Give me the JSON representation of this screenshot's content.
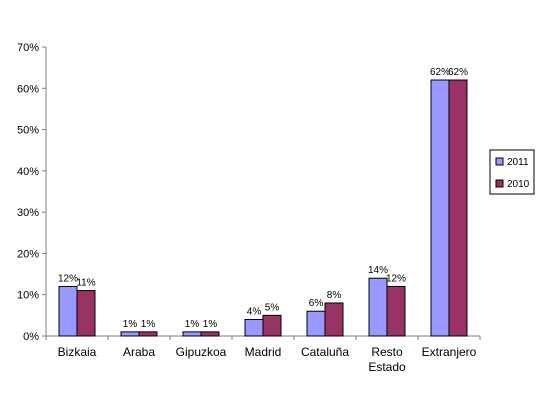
{
  "chart_data": {
    "type": "bar",
    "title": "",
    "xlabel": "",
    "ylabel": "",
    "ylim": [
      0,
      70
    ],
    "yticks": [
      "0%",
      "10%",
      "20%",
      "30%",
      "40%",
      "50%",
      "60%",
      "70%"
    ],
    "y_tick_values": [
      0,
      10,
      20,
      30,
      40,
      50,
      60,
      70
    ],
    "categories": [
      [
        "Bizkaia"
      ],
      [
        "Araba"
      ],
      [
        "Gipuzkoa"
      ],
      [
        "Madrid"
      ],
      [
        "Cataluña"
      ],
      [
        "Resto",
        "Estado"
      ],
      [
        "Extranjero"
      ]
    ],
    "series": [
      {
        "name": "2011",
        "color": "#9999FF",
        "values": [
          12,
          1,
          1,
          4,
          6,
          14,
          62
        ],
        "labels": [
          "12%",
          "1%",
          "1%",
          "4%",
          "6%",
          "14%",
          "62%"
        ]
      },
      {
        "name": "2010",
        "color": "#993366",
        "values": [
          11,
          1,
          1,
          5,
          8,
          12,
          62
        ],
        "labels": [
          "11%",
          "1%",
          "1%",
          "5%",
          "8%",
          "12%",
          "62%"
        ]
      }
    ],
    "grid": false,
    "legend_position": "right"
  }
}
